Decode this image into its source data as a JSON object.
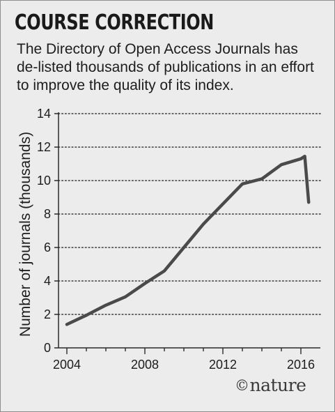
{
  "header": {
    "title": "COURSE CORRECTION",
    "subtitle": "The Directory of Open Access Journals has de-listed thousands of publications in an effort to improve the quality of its index."
  },
  "logo": {
    "symbol": "©",
    "text": "nature"
  },
  "chart_data": {
    "type": "line",
    "title": "",
    "xlabel": "",
    "ylabel": "Number of journals (thousands)",
    "xlim": [
      2004,
      2016.9
    ],
    "ylim": [
      0,
      14
    ],
    "x_ticks": [
      "2004",
      "2008",
      "2012",
      "2016"
    ],
    "y_ticks": [
      "0",
      "2",
      "4",
      "6",
      "8",
      "10",
      "12",
      "14"
    ],
    "grid": "horizontal dotted",
    "line_color": "#4a4a4a",
    "series": [
      {
        "x": [
          2004,
          2005,
          2006,
          2007,
          2008,
          2009,
          2010,
          2011,
          2012,
          2013,
          2014,
          2015,
          2016,
          2016.2,
          2016.4
        ],
        "values": [
          1.4,
          1.95,
          2.55,
          3.05,
          3.85,
          4.6,
          6.0,
          7.4,
          8.6,
          9.8,
          10.1,
          10.95,
          11.3,
          11.45,
          8.7
        ]
      }
    ]
  }
}
